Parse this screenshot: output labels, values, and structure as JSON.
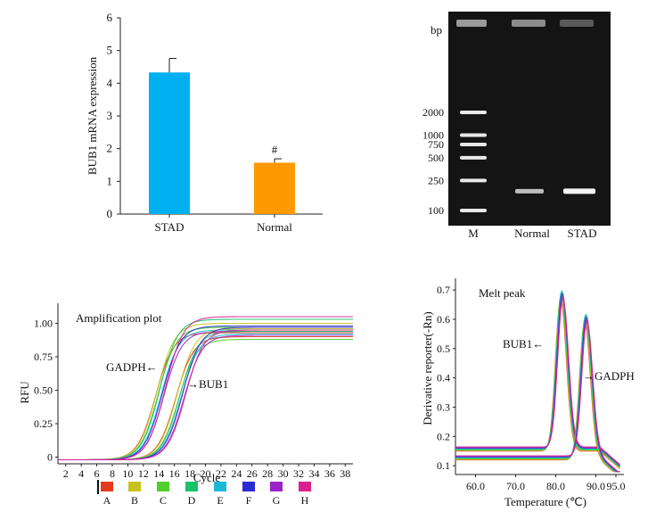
{
  "chart_data": [
    {
      "type": "bar",
      "categories": [
        "STAD",
        "Normal"
      ],
      "values": [
        4.33,
        1.57
      ],
      "errors": [
        0.43,
        0.12
      ],
      "colors": [
        "#00b0f0",
        "#ff9900"
      ],
      "ylabel": "BUB1 mRNA expression",
      "ylim": [
        0,
        6
      ],
      "yticks": [
        "0",
        "1",
        "2",
        "3",
        "4",
        "5",
        "6"
      ],
      "annotation": "#"
    },
    {
      "type": "gel",
      "bp_label": "bp",
      "marker_sizes": [
        "2000",
        "1000",
        "750",
        "500",
        "250",
        "100"
      ],
      "lanes": [
        "M",
        "Normal",
        "STAD"
      ],
      "band_size_bp": 180
    },
    {
      "type": "line",
      "title": "Amplification plot",
      "xlabel": "Cycle",
      "ylabel": "RFU",
      "xticks": [
        "2",
        "4",
        "6",
        "8",
        "10",
        "12",
        "14",
        "16",
        "18",
        "20",
        "22",
        "24",
        "26",
        "28",
        "30",
        "32",
        "34",
        "36",
        "38"
      ],
      "yticks": [
        "0",
        "0.25",
        "0.50",
        "0.75",
        "1.00"
      ],
      "xlim": [
        1,
        39
      ],
      "ylim": [
        -0.05,
        1.15
      ],
      "annotations": [
        "GADPH←",
        "→BUB1"
      ],
      "legend": [
        "A",
        "B",
        "C",
        "D",
        "E",
        "F",
        "G",
        "H"
      ],
      "colors": [
        "#e63a1d",
        "#c9c21c",
        "#4fd12b",
        "#19c26a",
        "#1cb8d8",
        "#2b2bd1",
        "#9b23c9",
        "#d8238e"
      ],
      "series": [
        {
          "group": "GADPH",
          "midpoint": 14.2,
          "plateau": [
            0.95,
            1.02,
            0.99,
            1.05,
            0.97,
            1.0,
            0.96,
            1.07
          ]
        },
        {
          "group": "BUB1",
          "midpoint": 16.8,
          "plateau": [
            0.92,
            0.98,
            0.9,
            0.96,
            0.94,
            0.99,
            0.93,
            0.97
          ]
        }
      ]
    },
    {
      "type": "line",
      "title": "Melt peak",
      "xlabel": "Temperature (℃)",
      "ylabel": "Derivative reporter(-Rn)",
      "xticks": [
        "60.0",
        "70.0",
        "80.0",
        "90.0",
        "95.0"
      ],
      "yticks": [
        "0.1",
        "0.2",
        "0.3",
        "0.4",
        "0.5",
        "0.6",
        "0.7"
      ],
      "xlim": [
        55,
        97
      ],
      "ylim": [
        0.07,
        0.74
      ],
      "annotations": [
        "BUB1←",
        "→GADPH"
      ],
      "series": [
        {
          "group": "BUB1",
          "peak_temp": 81.5,
          "peak_value": 0.7
        },
        {
          "group": "GADPH",
          "peak_temp": 87.5,
          "peak_value": 0.62
        }
      ]
    }
  ]
}
